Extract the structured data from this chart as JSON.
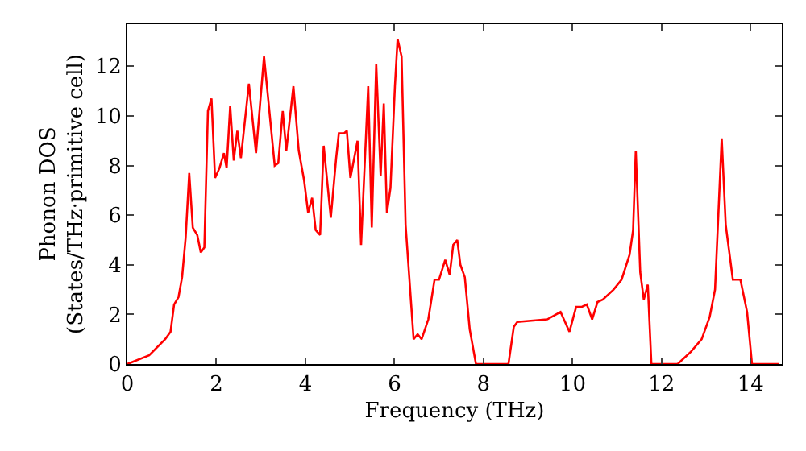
{
  "chart_data": {
    "type": "line",
    "xlabel": "Frequency (THz)",
    "ylabel": "Phonon DOS\n(States/THz·primitive cell)",
    "xlim": [
      0,
      14.7
    ],
    "ylim": [
      0,
      13.7
    ],
    "xticks": [
      0,
      2,
      4,
      6,
      8,
      10,
      12,
      14
    ],
    "yticks": [
      0,
      2,
      4,
      6,
      8,
      10,
      12
    ],
    "marker": "none",
    "line_style": "solid",
    "series": [
      {
        "color": "#ff0000",
        "x": [
          0,
          0.49,
          0.85,
          0.97,
          1.05,
          1.15,
          1.23,
          1.31,
          1.39,
          1.47,
          1.57,
          1.65,
          1.73,
          1.81,
          1.89,
          1.97,
          2.07,
          2.17,
          2.23,
          2.31,
          2.39,
          2.47,
          2.55,
          2.73,
          2.89,
          3.07,
          3.31,
          3.39,
          3.49,
          3.57,
          3.73,
          3.85,
          3.97,
          4.06,
          4.15,
          4.23,
          4.33,
          4.41,
          4.57,
          4.69,
          4.75,
          4.87,
          4.93,
          5.01,
          5.17,
          5.25,
          5.41,
          5.49,
          5.59,
          5.69,
          5.76,
          5.83,
          5.91,
          6.01,
          6.07,
          6.16,
          6.25,
          6.43,
          6.52,
          6.61,
          6.76,
          6.9,
          7.0,
          7.14,
          7.24,
          7.32,
          7.41,
          7.48,
          7.58,
          7.69,
          7.83,
          8.56,
          8.68,
          8.76,
          9.43,
          9.73,
          9.93,
          10.08,
          10.2,
          10.32,
          10.44,
          10.56,
          10.68,
          10.92,
          11.1,
          11.28,
          11.36,
          11.42,
          11.52,
          11.6,
          11.69,
          11.77,
          12.36,
          12.66,
          12.9,
          13.08,
          13.2,
          13.35,
          13.44,
          13.6,
          13.77,
          13.92,
          14.03,
          14.64
        ],
        "values": [
          0,
          0.35,
          1.0,
          1.3,
          2.4,
          2.7,
          3.5,
          5.1,
          7.7,
          5.5,
          5.2,
          4.5,
          4.7,
          10.2,
          10.7,
          7.5,
          7.9,
          8.5,
          7.9,
          10.4,
          8.2,
          9.4,
          8.3,
          11.3,
          8.5,
          12.4,
          8.0,
          8.1,
          10.2,
          8.6,
          11.2,
          8.6,
          7.4,
          6.1,
          6.7,
          5.4,
          5.2,
          8.8,
          5.9,
          8.3,
          9.3,
          9.3,
          9.4,
          7.5,
          9.0,
          4.8,
          11.2,
          5.5,
          12.1,
          7.6,
          10.5,
          6.1,
          7.1,
          11.2,
          13.1,
          12.4,
          5.6,
          1.0,
          1.2,
          1.0,
          1.8,
          3.4,
          3.4,
          4.2,
          3.6,
          4.8,
          5.0,
          4.0,
          3.5,
          1.4,
          0,
          0,
          1.5,
          1.7,
          1.8,
          2.1,
          1.3,
          2.3,
          2.3,
          2.4,
          1.8,
          2.5,
          2.6,
          3.0,
          3.4,
          4.4,
          5.4,
          8.6,
          3.7,
          2.6,
          3.2,
          0,
          0,
          0.5,
          1.0,
          1.9,
          3.0,
          9.1,
          5.6,
          3.4,
          3.4,
          2.1,
          0,
          0
        ]
      }
    ]
  }
}
